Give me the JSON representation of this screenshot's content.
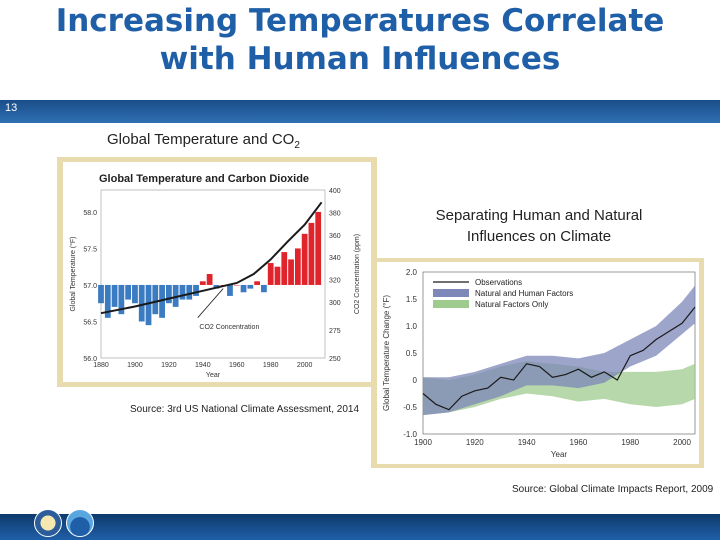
{
  "slide": {
    "title_line1": "Increasing Temperatures Correlate",
    "title_line2": "with Human Influences",
    "number": "13"
  },
  "left_panel": {
    "heading": "Global Temperature and CO",
    "heading_sub": "2",
    "source": "Source: 3rd US National Climate Assessment, 2014"
  },
  "right_panel": {
    "heading_line1": "Separating Human and Natural",
    "heading_line2": "Influences on Climate",
    "source": "Source: Global Climate Impacts Report, 2009"
  },
  "chart_data": [
    {
      "type": "bar",
      "title": "Global Temperature and Carbon Dioxide",
      "xlabel": "Year",
      "ylabel": "Global Temperature (°F)",
      "y2label": "CO2 Concentration (ppm)",
      "xlim": [
        1880,
        2012
      ],
      "ylim": [
        56.0,
        58.3
      ],
      "y2lim": [
        250,
        400
      ],
      "x_ticks": [
        1880,
        1900,
        1920,
        1940,
        1960,
        1980,
        2000
      ],
      "y_ticks": [
        56.0,
        56.5,
        57.0,
        57.5,
        58.0
      ],
      "y_tick_labels": [
        "56.0",
        "56.5",
        "57.0",
        "57.5",
        "58.0"
      ],
      "y2_ticks": [
        250,
        275,
        300,
        320,
        340,
        360,
        380,
        400
      ],
      "baseline": 57.0,
      "annotation": "CO2 Concentration",
      "colors": {
        "above": "#e0242c",
        "below": "#3a7bc2",
        "line": "#1a1a1a"
      },
      "series": [
        {
          "name": "Global Temperature",
          "x": [
            1880,
            1884,
            1888,
            1892,
            1896,
            1900,
            1904,
            1908,
            1912,
            1916,
            1920,
            1924,
            1928,
            1932,
            1936,
            1940,
            1944,
            1948,
            1952,
            1956,
            1960,
            1964,
            1968,
            1972,
            1976,
            1980,
            1984,
            1988,
            1992,
            1996,
            2000,
            2004,
            2008
          ],
          "values": [
            56.75,
            56.55,
            56.7,
            56.6,
            56.8,
            56.75,
            56.5,
            56.45,
            56.6,
            56.55,
            56.75,
            56.7,
            56.8,
            56.8,
            56.85,
            57.05,
            57.15,
            56.95,
            57.0,
            56.85,
            57.0,
            56.9,
            56.95,
            57.05,
            56.9,
            57.3,
            57.25,
            57.45,
            57.35,
            57.5,
            57.7,
            57.85,
            58.0
          ]
        },
        {
          "name": "CO2 Concentration",
          "x": [
            1880,
            1900,
            1920,
            1940,
            1960,
            1970,
            1980,
            1990,
            2000,
            2010
          ],
          "values": [
            290,
            296,
            303,
            310,
            317,
            325,
            338,
            354,
            369,
            389
          ]
        }
      ]
    },
    {
      "type": "line",
      "xlabel": "Year",
      "ylabel": "Global Temperature Change (°F)",
      "xlim": [
        1900,
        2005
      ],
      "ylim": [
        -1.0,
        2.0
      ],
      "x_ticks": [
        1900,
        1920,
        1940,
        1960,
        1980,
        2000
      ],
      "y_ticks": [
        -1.0,
        -0.5,
        0,
        0.5,
        1.0,
        1.5,
        2.0
      ],
      "y_tick_labels": [
        "-1.0",
        "-0.5",
        "0",
        "0.5",
        "1.0",
        "1.5",
        "2.0"
      ],
      "legend": "top-left",
      "series": [
        {
          "name": "Observations",
          "color": "#1a1a1a",
          "x": [
            1900,
            1905,
            1910,
            1915,
            1920,
            1925,
            1930,
            1935,
            1940,
            1945,
            1950,
            1955,
            1960,
            1965,
            1970,
            1975,
            1980,
            1985,
            1990,
            1995,
            2000,
            2005
          ],
          "values": [
            -0.25,
            -0.45,
            -0.55,
            -0.3,
            -0.2,
            -0.15,
            0.05,
            0.0,
            0.3,
            0.25,
            0.05,
            0.1,
            0.2,
            0.05,
            0.15,
            0.0,
            0.45,
            0.55,
            0.75,
            0.9,
            1.05,
            1.35
          ]
        },
        {
          "name": "Natural and Human Factors",
          "color": "#7d87b8",
          "x": [
            1900,
            1910,
            1920,
            1930,
            1940,
            1950,
            1960,
            1970,
            1980,
            1990,
            2000,
            2005
          ],
          "lower": [
            -0.65,
            -0.6,
            -0.45,
            -0.3,
            -0.1,
            -0.1,
            -0.15,
            -0.05,
            0.25,
            0.45,
            0.85,
            1.05
          ],
          "upper": [
            0.05,
            0.05,
            0.15,
            0.3,
            0.45,
            0.45,
            0.4,
            0.5,
            0.75,
            1.0,
            1.45,
            1.75
          ]
        },
        {
          "name": "Natural Factors Only",
          "color": "#9fcb8e",
          "x": [
            1900,
            1910,
            1920,
            1930,
            1940,
            1950,
            1960,
            1970,
            1980,
            1990,
            2000,
            2005
          ],
          "lower": [
            -0.65,
            -0.6,
            -0.5,
            -0.35,
            -0.25,
            -0.3,
            -0.4,
            -0.35,
            -0.45,
            -0.5,
            -0.45,
            -0.35
          ],
          "upper": [
            0.05,
            0.0,
            0.1,
            0.25,
            0.35,
            0.3,
            0.25,
            0.15,
            0.15,
            0.15,
            0.2,
            0.3
          ]
        }
      ]
    }
  ]
}
